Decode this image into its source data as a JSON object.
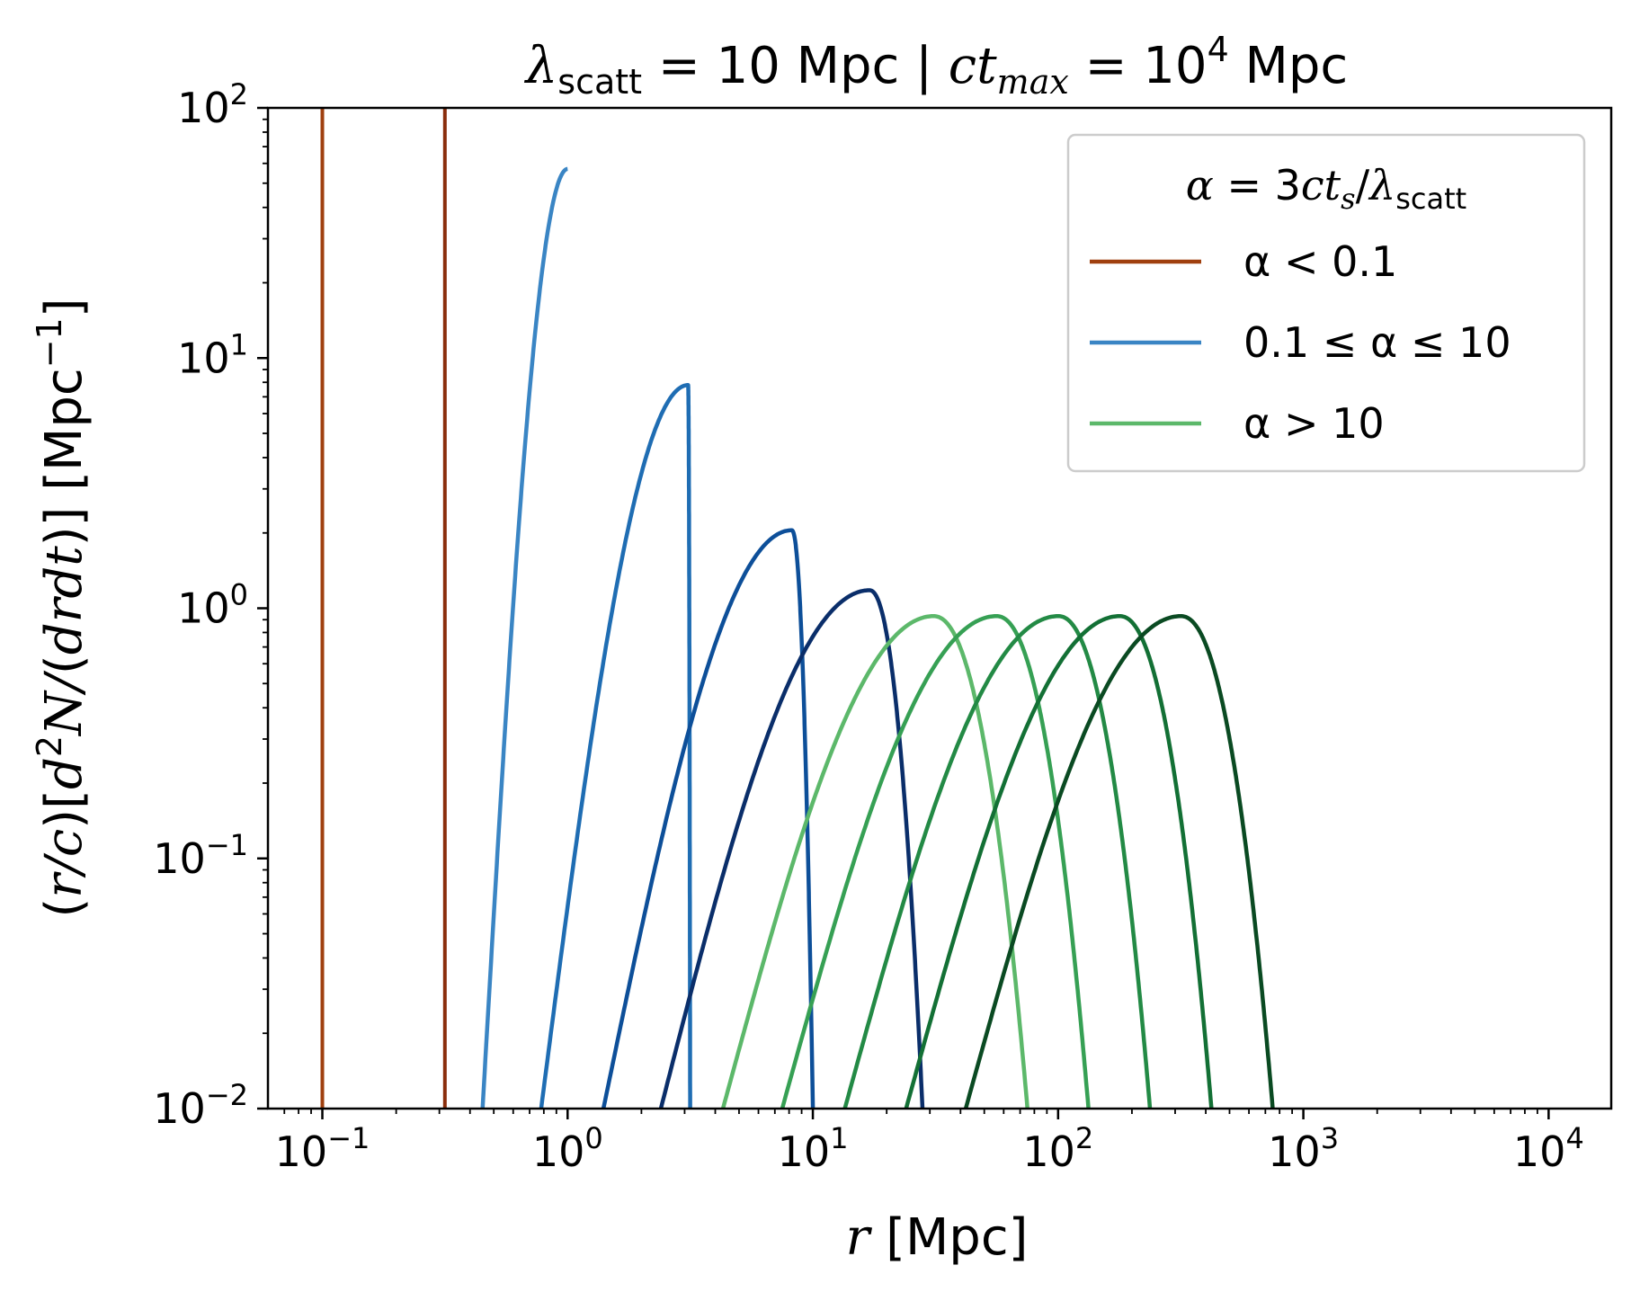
{
  "chart_data": {
    "type": "line",
    "title": {
      "lambda": "λ",
      "lambda_sub": "scatt",
      "part1": " = 10 Mpc | ",
      "ct": "ct",
      "ct_sub": "max",
      "part2": " = 10",
      "part2_sup": "4",
      "part3": " Mpc"
    },
    "xlabel": {
      "var": "r",
      "unit": " [Mpc]"
    },
    "ylabel": {
      "a": "(",
      "b": "r/c",
      "c": ")[",
      "d": "d",
      "d_sup": "2",
      "e": "N/",
      "f": "(",
      "g": "drdt",
      "h": ")] [Mpc",
      "h_sup": "−1",
      "i": "]"
    },
    "x_scale": "log",
    "y_scale": "log",
    "xlim": [
      0.06,
      18000
    ],
    "ylim": [
      0.01,
      100
    ],
    "x_ticks": [
      {
        "base": "10",
        "exp": "−1",
        "value": 0.1
      },
      {
        "base": "10",
        "exp": "0",
        "value": 1
      },
      {
        "base": "10",
        "exp": "1",
        "value": 10
      },
      {
        "base": "10",
        "exp": "2",
        "value": 100
      },
      {
        "base": "10",
        "exp": "3",
        "value": 1000
      },
      {
        "base": "10",
        "exp": "4",
        "value": 10000
      }
    ],
    "y_ticks": [
      {
        "base": "10",
        "exp": "−2",
        "value": 0.01
      },
      {
        "base": "10",
        "exp": "−1",
        "value": 0.1
      },
      {
        "base": "10",
        "exp": "0",
        "value": 1
      },
      {
        "base": "10",
        "exp": "1",
        "value": 10
      },
      {
        "base": "10",
        "exp": "2",
        "value": 100
      }
    ],
    "grid": false,
    "legend": {
      "position": "top-right",
      "title": {
        "alpha": "α",
        "eq": " = 3",
        "ct": "ct",
        "ct_sub": "s",
        "slash": "/",
        "lambda": "λ",
        "lambda_sub": "scatt"
      },
      "entries": [
        {
          "label": "α < 0.1",
          "color": "#a0400f"
        },
        {
          "label": "0.1 ≤ α ≤ 10",
          "color": "#3a85c4"
        },
        {
          "label": "α > 10",
          "color": "#5cb86a"
        }
      ]
    },
    "series": [
      {
        "group": "α < 0.1",
        "color": "#a0400f",
        "kind": "vertical",
        "x": 0.1
      },
      {
        "group": "α < 0.1",
        "color": "#8a2e0c",
        "kind": "vertical",
        "x": 0.316
      },
      {
        "group": "0.1 ≤ α ≤ 10",
        "color": "#3a85c4",
        "kind": "peak",
        "peak_x": 1.0,
        "peak_y": 57,
        "x_start": 0.45,
        "x_end": 1.0,
        "y_at_start": 0.01,
        "y_at_end": 0.01
      },
      {
        "group": "0.1 ≤ α ≤ 10",
        "color": "#1f6db3",
        "kind": "peak",
        "peak_x": 3.1,
        "peak_y": 7.8,
        "x_start": 0.78,
        "x_end": 3.16,
        "y_at_start": 0.01,
        "y_at_end": 0.01
      },
      {
        "group": "0.1 ≤ α ≤ 10",
        "color": "#0d4f99",
        "kind": "peak",
        "peak_x": 8.2,
        "peak_y": 2.05,
        "x_start": 1.4,
        "x_end": 10.0,
        "y_at_start": 0.01,
        "y_at_end": 0.01
      },
      {
        "group": "0.1 ≤ α ≤ 10",
        "color": "#0a2e6a",
        "kind": "peak",
        "peak_x": 17,
        "peak_y": 1.18,
        "x_start": 2.4,
        "x_end": 28,
        "y_at_start": 0.01,
        "y_at_end": 0.01
      },
      {
        "group": "α > 10",
        "color": "#5cb86a",
        "kind": "peak",
        "peak_x": 31,
        "peak_y": 0.93,
        "x_start": 4.3,
        "x_end": 75,
        "y_at_start": 0.01,
        "y_at_end": 0.01
      },
      {
        "group": "α > 10",
        "color": "#36a054",
        "kind": "peak",
        "peak_x": 56,
        "peak_y": 0.93,
        "x_start": 7.5,
        "x_end": 133,
        "y_at_start": 0.01,
        "y_at_end": 0.01
      },
      {
        "group": "α > 10",
        "color": "#238a45",
        "kind": "peak",
        "peak_x": 100,
        "peak_y": 0.93,
        "x_start": 13.5,
        "x_end": 237,
        "y_at_start": 0.01,
        "y_at_end": 0.01
      },
      {
        "group": "α > 10",
        "color": "#137035",
        "kind": "peak",
        "peak_x": 178,
        "peak_y": 0.93,
        "x_start": 24,
        "x_end": 422,
        "y_at_start": 0.01,
        "y_at_end": 0.01
      },
      {
        "group": "α > 10",
        "color": "#0a4a22",
        "kind": "peak",
        "peak_x": 316,
        "peak_y": 0.93,
        "x_start": 42,
        "x_end": 750,
        "y_at_start": 0.01,
        "y_at_end": 0.01
      }
    ]
  }
}
